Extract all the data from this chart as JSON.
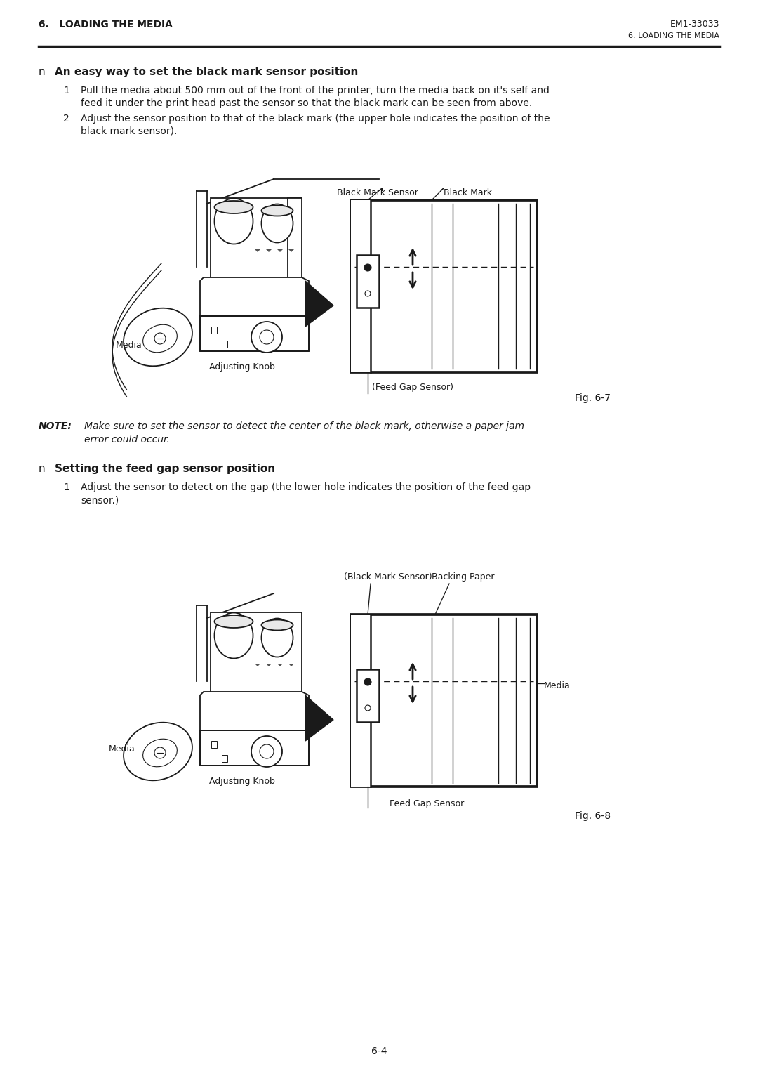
{
  "page_title_left": "6.   LOADING THE MEDIA",
  "page_title_right": "EM1-33033",
  "page_subtitle_right": "6. LOADING THE MEDIA",
  "section1_bullet": "n",
  "section1_heading": "An easy way to set the black mark sensor position",
  "s1_line1_num": "1",
  "s1_line1a": "Pull the media about 500 mm out of the front of the printer, turn the media back on it's self and",
  "s1_line1b": "feed it under the print head past the sensor so that the black mark can be seen from above.",
  "s1_line2_num": "2",
  "s1_line2a": "Adjust the sensor position to that of the black mark (the upper hole indicates the position of the",
  "s1_line2b": "black mark sensor).",
  "label_black_mark_sensor": "Black Mark Sensor",
  "label_black_mark": "Black Mark",
  "label_feed_gap_sensor1": "(Feed Gap Sensor)",
  "label_adjusting_knob1": "Adjusting Knob",
  "label_media1": "Media",
  "fig1_caption": "Fig. 6-7",
  "note_label": "NOTE:",
  "note_text1": "Make sure to set the sensor to detect the center of the black mark, otherwise a paper jam",
  "note_text2": "error could occur.",
  "section2_bullet": "n",
  "section2_heading": "Setting the feed gap sensor position",
  "s2_line1_num": "1",
  "s2_line1a": "Adjust the sensor to detect on the gap (the lower hole indicates the position of the feed gap",
  "s2_line1b": "sensor.)",
  "label_black_mark_sensor2": "(Black Mark Sensor)",
  "label_backing_paper": "Backing Paper",
  "label_media2": "Media",
  "label_feed_gap_sensor2": "Feed Gap Sensor",
  "label_adjusting_knob2": "Adjusting Knob",
  "label_media_left2": "Media",
  "fig2_caption": "Fig. 6-8",
  "page_number": "6-4",
  "bg_color": "#ffffff",
  "text_color": "#1a1a1a"
}
